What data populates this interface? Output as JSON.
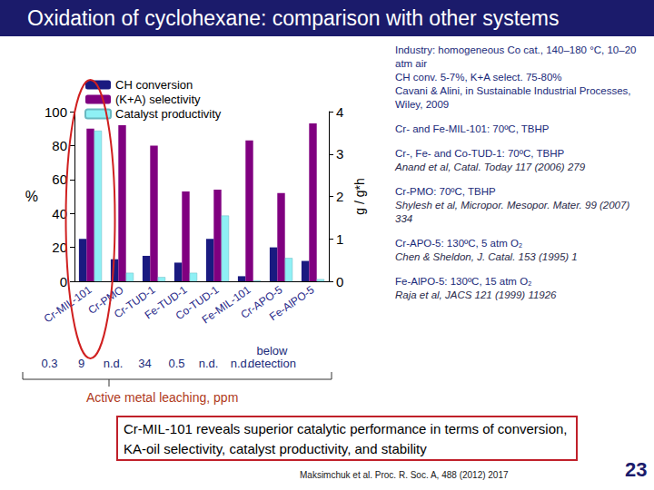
{
  "slide": {
    "title": "Oxidation of cyclohexane: comparison with other systems",
    "references": [
      {
        "lines": [
          "Industry: homogeneous Co cat., 140–180 °C, 10–20 atm air",
          "CH conv. 5-7%, K+A select. 75-80%",
          "Cavani & Alini, in Sustainable Industrial Processes, Wiley, 2009"
        ],
        "italic": []
      },
      {
        "lines": [
          "Cr- and Fe-MIL-101: 70ºC, TBHP"
        ],
        "italic": []
      },
      {
        "lines": [
          "Cr-, Fe- and Co-TUD-1: 70ºC, TBHP",
          "Anand et al, Catal. Today 117 (2006) 279"
        ],
        "italic": [
          1
        ]
      },
      {
        "lines": [
          "Cr-PMO: 70ºC, TBHP",
          "Shylesh et al, Micropor. Mesopor. Mater. 99 (2007) 334"
        ],
        "italic": [
          1
        ]
      },
      {
        "lines": [
          "Cr-APO-5: 130ºC, 5 atm O₂",
          "Chen & Sheldon, J. Catal. 153 (1995) 1"
        ],
        "italic": [
          1
        ]
      },
      {
        "lines": [
          "Fe-AlPO-5: 130ºC, 15 atm O₂",
          "Raja et al, JACS 121 (1999) 11926"
        ],
        "italic": [
          1
        ]
      }
    ],
    "leaching": {
      "title": "Active metal leaching, ppm",
      "values": [
        "0.3",
        "9",
        "n.d.",
        "34",
        "0.5",
        "n.d.",
        "n.d.",
        "below detection"
      ]
    },
    "conclusion": "Cr-MIL-101 reveals superior catalytic performance in terms of conversion, KA-oil selectivity, catalyst productivity, and stability",
    "footer": "Maksimchuk et al. Proc. R. Soc. A, 488 (2012) 2017",
    "page": "23"
  },
  "chart_data": {
    "type": "bar",
    "categories": [
      "Cr-MIL-101",
      "Cr-PMO",
      "Cr-TUD-1",
      "Fe-TUD-1",
      "Co-TUD-1",
      "Fe-MIL-101",
      "Cr-APO-5",
      "Fe-AlPO-5"
    ],
    "y_label": "%",
    "y2_label": "g / g*h",
    "ylim": [
      0,
      100
    ],
    "yticks": [
      0,
      20,
      40,
      60,
      80,
      100
    ],
    "y2lim": [
      0,
      4
    ],
    "y2ticks": [
      0,
      1,
      2,
      3,
      4
    ],
    "grid": false,
    "legend": "top-left",
    "series": [
      {
        "name": "CH conversion",
        "color": "#1a1a80",
        "values": [
          25,
          13,
          15,
          11,
          25,
          3,
          20,
          12
        ]
      },
      {
        "name": "(K+A) selectivity",
        "color": "#800080",
        "values": [
          90,
          92,
          80,
          53,
          54,
          83,
          52,
          93
        ]
      },
      {
        "name": "Catalyst productivity",
        "color": "#8ff0f5",
        "axis": "y2",
        "values": [
          3.55,
          0.2,
          0.1,
          0.2,
          1.55,
          0.02,
          0.55,
          0.05
        ]
      }
    ]
  }
}
